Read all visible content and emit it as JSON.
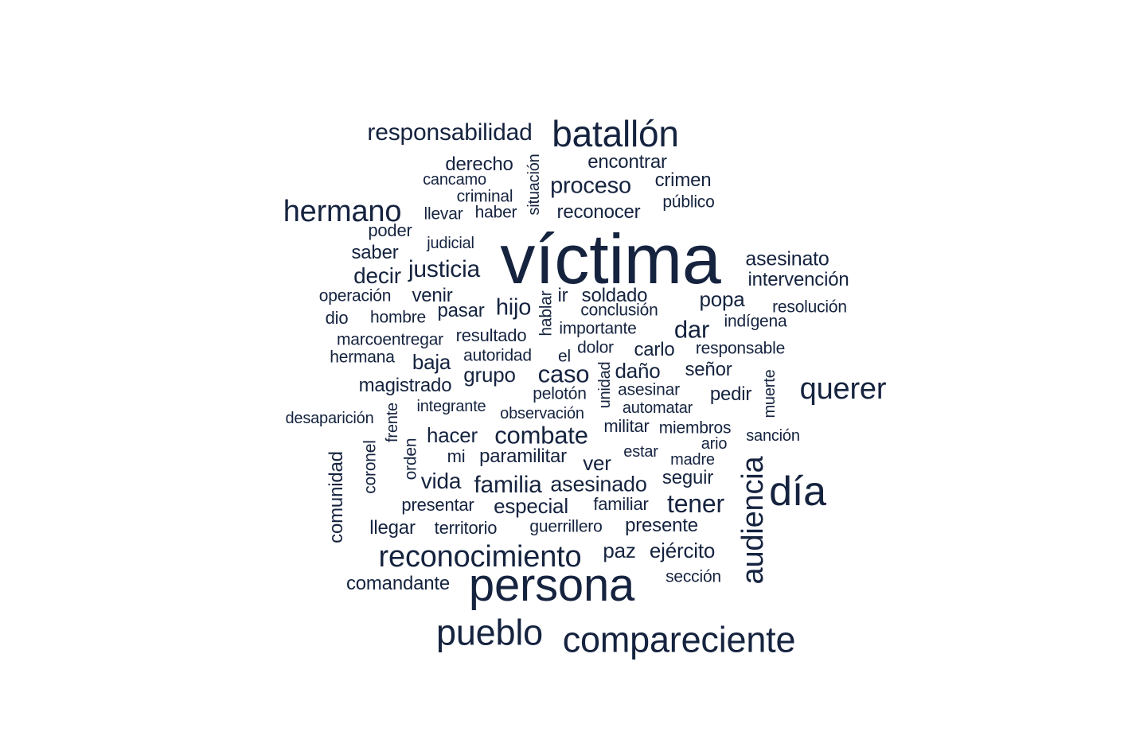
{
  "word_color": "#15233f",
  "background": "#ffffff",
  "words": [
    "víctima",
    "persona",
    "batallón",
    "compareciente",
    "pueblo",
    "día",
    "reconocimiento",
    "querer",
    "audiencia",
    "hermano",
    "responsabilidad",
    "combate",
    "asesinado",
    "familia",
    "tener",
    "proceso",
    "justicia",
    "caso",
    "dar",
    "hijo",
    "decir",
    "reconocer",
    "crimen",
    "encontrar",
    "asesinato",
    "intervención",
    "popa",
    "soldado",
    "derecho",
    "especial",
    "paramilitar",
    "hacer",
    "vida",
    "seguir",
    "ejército",
    "paz",
    "baja",
    "grupo",
    "magistrado",
    "pedir",
    "daño",
    "señor",
    "saber",
    "poder",
    "llevar",
    "haber",
    "criminal",
    "cancamo",
    "público",
    "judicial",
    "situación",
    "venir",
    "pasar",
    "operación",
    "hombre",
    "dio",
    "resultado",
    "marcoentregar",
    "hermana",
    "autoridad",
    "el",
    "dolor",
    "carlo",
    "responsable",
    "conclusión",
    "importante",
    "indígena",
    "resolución",
    "ir",
    "hablar",
    "pelotón",
    "asesinar",
    "automatar",
    "observación",
    "integrante",
    "desaparición",
    "frente",
    "unidad",
    "muerte",
    "militar",
    "miembros",
    "sanción",
    "ario",
    "estar",
    "madre",
    "mi",
    "ver",
    "orden",
    "coronel",
    "comunidad",
    "presentar",
    "familiar",
    "llegar",
    "territorio",
    "guerrillero",
    "presente",
    "sección",
    "comandante"
  ]
}
